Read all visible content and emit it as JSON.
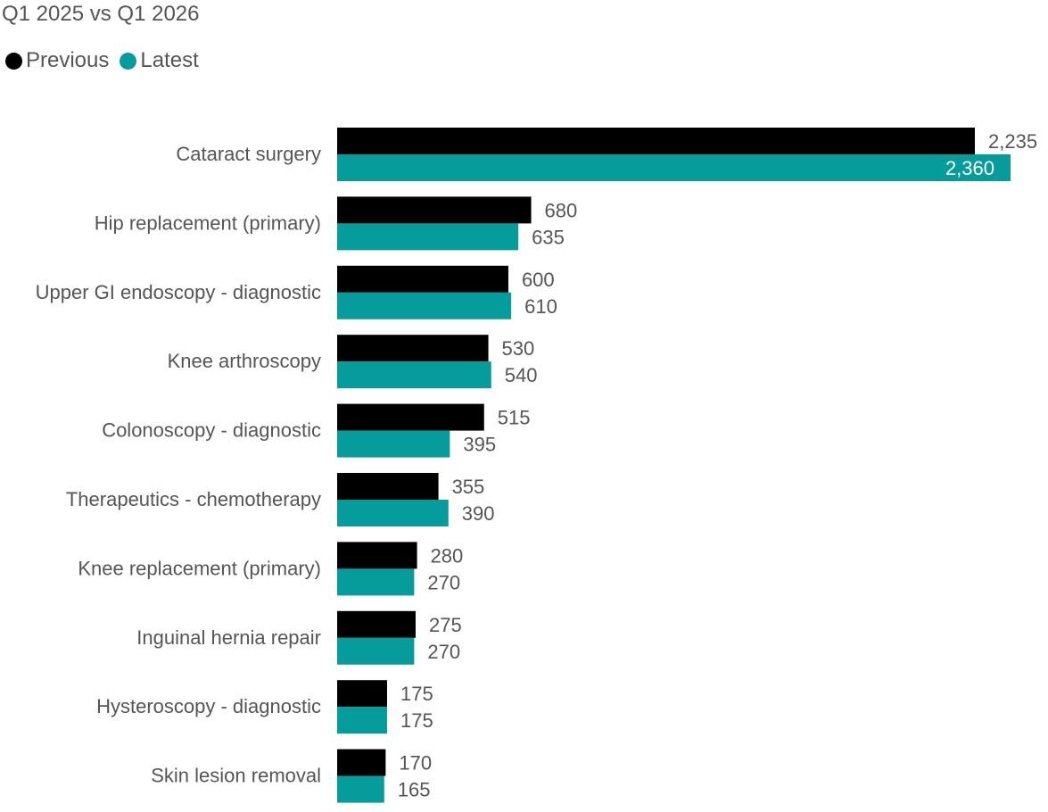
{
  "subtitle": "Q1 2025 vs Q1 2026",
  "legend": {
    "previous_label": "Previous",
    "latest_label": "Latest"
  },
  "colors": {
    "previous": "#000000",
    "latest": "#069c9c",
    "label_text": "#555555",
    "inside_label_text": "#ffffff"
  },
  "chart_data": {
    "type": "bar",
    "orientation": "horizontal",
    "categories": [
      "Cataract surgery",
      "Hip replacement (primary)",
      "Upper GI endoscopy - diagnostic",
      "Knee arthroscopy",
      "Colonoscopy - diagnostic",
      "Therapeutics - chemotherapy",
      "Knee replacement (primary)",
      "Inguinal hernia repair",
      "Hysteroscopy - diagnostic",
      "Skin lesion removal"
    ],
    "series": [
      {
        "name": "Previous",
        "values": [
          2235,
          680,
          600,
          530,
          515,
          355,
          280,
          275,
          175,
          170
        ],
        "labels": [
          "2,235",
          "680",
          "600",
          "530",
          "515",
          "355",
          "280",
          "275",
          "175",
          "170"
        ]
      },
      {
        "name": "Latest",
        "values": [
          2360,
          635,
          610,
          540,
          395,
          390,
          270,
          270,
          175,
          165
        ],
        "labels": [
          "2,360",
          "635",
          "610",
          "540",
          "395",
          "390",
          "270",
          "270",
          "175",
          "165"
        ]
      }
    ],
    "xlim": [
      0,
      2360
    ],
    "grid": false,
    "legend_position": "top-left",
    "data_labels": true
  }
}
